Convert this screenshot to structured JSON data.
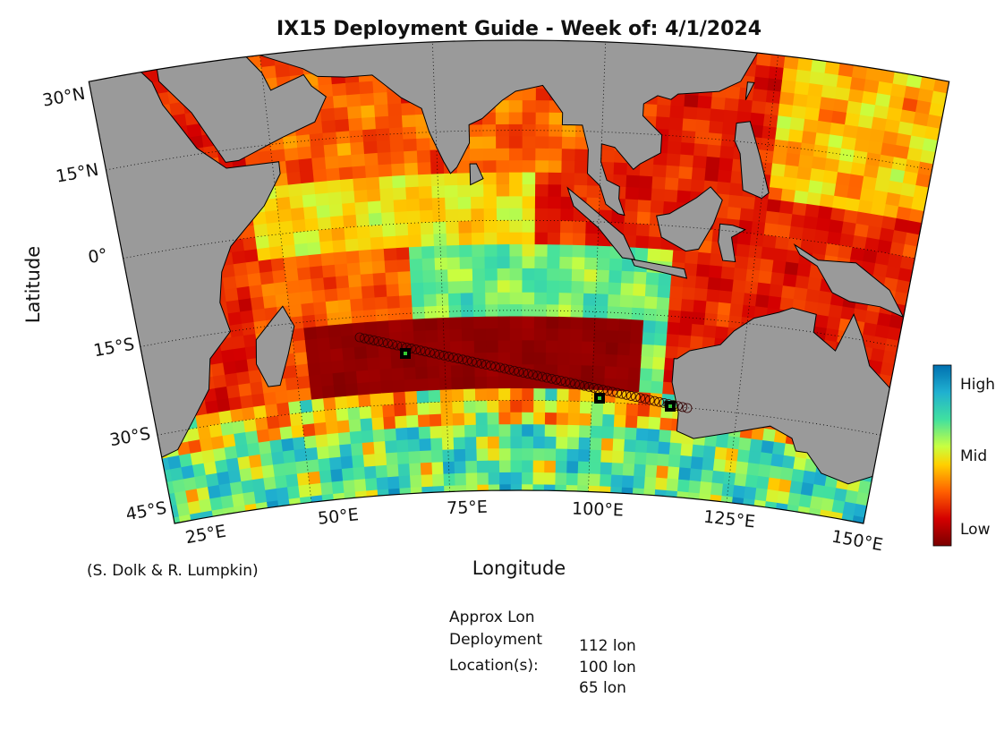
{
  "title": "IX15 Deployment Guide - Week of: 4/1/2024",
  "x_axis_label": "Longitude",
  "y_axis_label": "Latitude",
  "lat_labels": [
    "30°N",
    "15°N",
    "0°",
    "15°S",
    "30°S",
    "45°S"
  ],
  "lon_labels": [
    "25°E",
    "50°E",
    "75°E",
    "100°E",
    "125°E",
    "150°E"
  ],
  "colorbar": {
    "labels": [
      "High",
      "Mid",
      "Low"
    ]
  },
  "credit": "(S. Dolk & R. Lumpkin)",
  "deployment": {
    "heading": [
      "Approx Lon",
      "Deployment",
      "Location(s):"
    ],
    "locations": [
      "112 lon",
      "100 lon",
      "65 lon"
    ]
  }
}
